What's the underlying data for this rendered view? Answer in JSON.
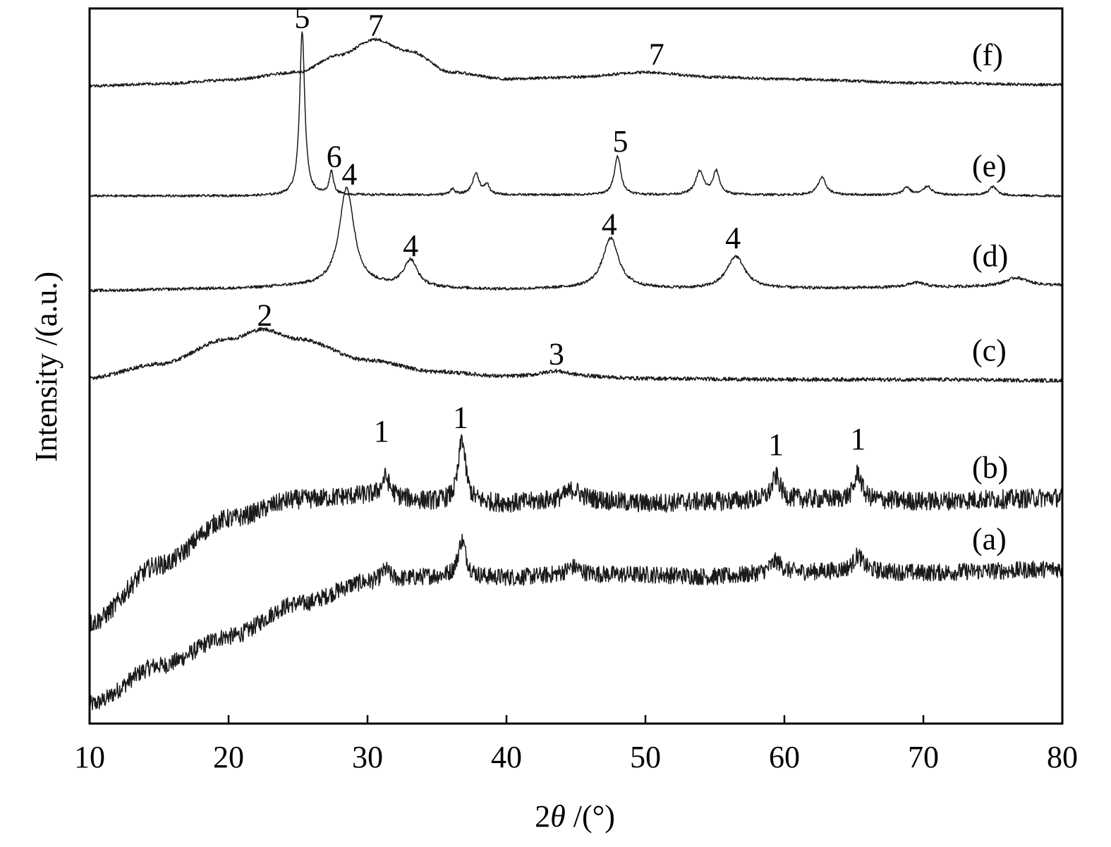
{
  "chart_data": {
    "type": "line",
    "xlabel_prefix": "2",
    "xlabel_symbol": "θ",
    "xlabel_suffix": " /(°)",
    "ylabel": "Intensity /(a.u.)",
    "xlim": [
      10,
      80
    ],
    "grid": false,
    "y_ticks_shown": false,
    "x_ticks": [
      {
        "value": 10,
        "label": "10"
      },
      {
        "value": 20,
        "label": "20"
      },
      {
        "value": 30,
        "label": "30"
      },
      {
        "value": 40,
        "label": "40"
      },
      {
        "value": 50,
        "label": "50"
      },
      {
        "value": 60,
        "label": "60"
      },
      {
        "value": 70,
        "label": "70"
      },
      {
        "value": 80,
        "label": "80"
      }
    ],
    "series": [
      {
        "label": "(a)",
        "offset": 0,
        "label_x": 73.5,
        "noise": 0.9,
        "points": [
          [
            10,
            1.0
          ],
          [
            15,
            3.0
          ],
          [
            20,
            4.5
          ],
          [
            25,
            6.2
          ],
          [
            30,
            7.3
          ],
          [
            35,
            7.6
          ],
          [
            40,
            7.55
          ],
          [
            45,
            7.7
          ],
          [
            50,
            7.7
          ],
          [
            55,
            7.6
          ],
          [
            60,
            7.8
          ],
          [
            65,
            7.9
          ],
          [
            70,
            7.8
          ],
          [
            75,
            7.9
          ],
          [
            80,
            8.0
          ]
        ],
        "peaks": [
          {
            "x": 31.3,
            "h": 0.6,
            "w": 0.4
          },
          {
            "x": 36.8,
            "h": 1.9,
            "w": 0.35
          },
          {
            "x": 44.8,
            "h": 0.4,
            "w": 0.6
          },
          {
            "x": 59.4,
            "h": 0.6,
            "w": 0.5
          },
          {
            "x": 65.3,
            "h": 0.8,
            "w": 0.4
          }
        ]
      },
      {
        "label": "(b)",
        "offset": 0,
        "label_x": 73.5,
        "noise": 1.0,
        "points": [
          [
            10,
            5.2
          ],
          [
            15,
            8.2
          ],
          [
            20,
            10.6
          ],
          [
            25,
            11.6
          ],
          [
            30,
            11.8
          ],
          [
            35,
            11.5
          ],
          [
            40,
            11.4
          ],
          [
            45,
            11.6
          ],
          [
            50,
            11.4
          ],
          [
            55,
            11.5
          ],
          [
            60,
            11.6
          ],
          [
            65,
            11.6
          ],
          [
            70,
            11.5
          ],
          [
            75,
            11.6
          ],
          [
            80,
            11.7
          ]
        ],
        "peaks": [
          {
            "x": 31.3,
            "h": 1.0,
            "w": 0.35
          },
          {
            "x": 36.8,
            "h": 3.3,
            "w": 0.3
          },
          {
            "x": 44.8,
            "h": 0.5,
            "w": 0.6
          },
          {
            "x": 59.4,
            "h": 1.2,
            "w": 0.35
          },
          {
            "x": 65.3,
            "h": 1.4,
            "w": 0.3
          }
        ]
      },
      {
        "label": "(c)",
        "offset": 0,
        "label_x": 73.5,
        "noise": 0.2,
        "points": [
          [
            10,
            17.9
          ],
          [
            15,
            18.6
          ],
          [
            20,
            19.9
          ],
          [
            22.5,
            20.4
          ],
          [
            25,
            19.9
          ],
          [
            30,
            18.8
          ],
          [
            35,
            18.2
          ],
          [
            40,
            17.95
          ],
          [
            45,
            17.95
          ],
          [
            50,
            17.85
          ],
          [
            60,
            17.8
          ],
          [
            70,
            17.8
          ],
          [
            80,
            17.75
          ]
        ],
        "peaks": [
          {
            "x": 43.5,
            "h": 0.3,
            "w": 1.2
          }
        ]
      },
      {
        "label": "(d)",
        "offset": 0,
        "label_x": 73.5,
        "noise": 0.15,
        "points": [
          [
            10,
            22.4
          ],
          [
            20,
            22.5
          ],
          [
            25,
            22.6
          ],
          [
            30,
            22.6
          ],
          [
            35,
            22.5
          ],
          [
            40,
            22.45
          ],
          [
            45,
            22.5
          ],
          [
            50,
            22.5
          ],
          [
            55,
            22.45
          ],
          [
            60,
            22.5
          ],
          [
            70,
            22.55
          ],
          [
            75,
            22.6
          ],
          [
            80,
            22.65
          ]
        ],
        "peaks": [
          {
            "x": 28.5,
            "h": 5.1,
            "w": 0.65
          },
          {
            "x": 33.1,
            "h": 1.4,
            "w": 0.6
          },
          {
            "x": 47.5,
            "h": 2.6,
            "w": 0.7
          },
          {
            "x": 56.5,
            "h": 1.7,
            "w": 0.8
          },
          {
            "x": 69.5,
            "h": 0.25,
            "w": 0.8
          },
          {
            "x": 76.7,
            "h": 0.45,
            "w": 1.0
          }
        ]
      },
      {
        "label": "(e)",
        "offset": 0,
        "label_x": 73.5,
        "noise": 0.12,
        "points": [
          [
            10,
            27.3
          ],
          [
            20,
            27.3
          ],
          [
            30,
            27.35
          ],
          [
            40,
            27.35
          ],
          [
            50,
            27.35
          ],
          [
            60,
            27.35
          ],
          [
            70,
            27.35
          ],
          [
            80,
            27.3
          ]
        ],
        "peaks": [
          {
            "x": 25.3,
            "h": 8.5,
            "w": 0.22
          },
          {
            "x": 27.4,
            "h": 1.2,
            "w": 0.18
          },
          {
            "x": 36.1,
            "h": 0.3,
            "w": 0.2
          },
          {
            "x": 37.8,
            "h": 1.1,
            "w": 0.3
          },
          {
            "x": 38.6,
            "h": 0.5,
            "w": 0.2
          },
          {
            "x": 48.0,
            "h": 2.0,
            "w": 0.28
          },
          {
            "x": 53.9,
            "h": 1.2,
            "w": 0.35
          },
          {
            "x": 55.1,
            "h": 1.2,
            "w": 0.28
          },
          {
            "x": 62.7,
            "h": 0.9,
            "w": 0.35
          },
          {
            "x": 68.8,
            "h": 0.4,
            "w": 0.3
          },
          {
            "x": 70.3,
            "h": 0.45,
            "w": 0.35
          },
          {
            "x": 75.0,
            "h": 0.45,
            "w": 0.35
          }
        ]
      },
      {
        "label": "(f)",
        "offset": 0,
        "label_x": 73.5,
        "noise": 0.15,
        "points": [
          [
            10,
            33.0
          ],
          [
            15,
            33.1
          ],
          [
            20,
            33.3
          ],
          [
            25,
            33.7
          ],
          [
            28,
            34.6
          ],
          [
            30.5,
            35.4
          ],
          [
            33,
            34.8
          ],
          [
            36,
            33.7
          ],
          [
            40,
            33.35
          ],
          [
            45,
            33.45
          ],
          [
            50,
            33.7
          ],
          [
            55,
            33.45
          ],
          [
            60,
            33.35
          ],
          [
            70,
            33.15
          ],
          [
            80,
            33.05
          ]
        ],
        "peaks": []
      }
    ],
    "peak_labels": [
      {
        "text": "7",
        "x": 30.6,
        "y": 35.6
      },
      {
        "text": "7",
        "x": 50.8,
        "y": 34.1
      },
      {
        "text": "5",
        "x": 25.3,
        "y": 36.0
      },
      {
        "text": "6",
        "x": 27.6,
        "y": 28.8
      },
      {
        "text": "5",
        "x": 48.2,
        "y": 29.6
      },
      {
        "text": "4",
        "x": 28.7,
        "y": 27.9
      },
      {
        "text": "4",
        "x": 33.1,
        "y": 24.2
      },
      {
        "text": "4",
        "x": 47.4,
        "y": 25.3
      },
      {
        "text": "4",
        "x": 56.3,
        "y": 24.6
      },
      {
        "text": "2",
        "x": 22.6,
        "y": 20.6
      },
      {
        "text": "3",
        "x": 43.6,
        "y": 18.6
      },
      {
        "text": "1",
        "x": 31.0,
        "y": 14.6
      },
      {
        "text": "1",
        "x": 36.7,
        "y": 15.3
      },
      {
        "text": "1",
        "x": 59.4,
        "y": 13.9
      },
      {
        "text": "1",
        "x": 65.3,
        "y": 14.2
      }
    ],
    "ylim": [
      0,
      37
    ]
  }
}
